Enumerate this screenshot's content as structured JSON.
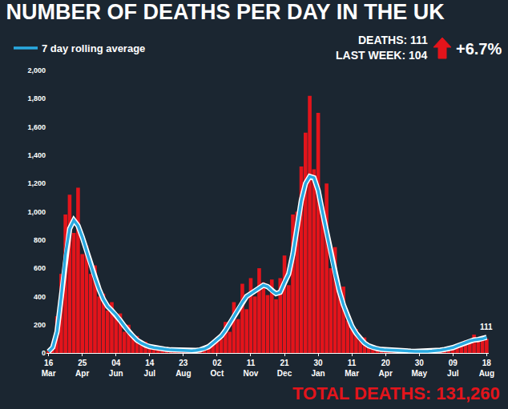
{
  "chart_data": {
    "type": "bar",
    "title": "NUMBER OF DEATHS PER DAY IN THE UK",
    "categories": [
      "16 Mar",
      null,
      null,
      null,
      null,
      null,
      null,
      null,
      "25 Apr",
      null,
      null,
      null,
      null,
      null,
      null,
      null,
      "04 Jun",
      null,
      null,
      null,
      null,
      null,
      null,
      null,
      "14 Jul",
      null,
      null,
      null,
      null,
      null,
      null,
      null,
      "23 Aug",
      null,
      null,
      null,
      null,
      null,
      null,
      null,
      "02 Oct",
      null,
      null,
      null,
      null,
      null,
      null,
      null,
      "11 Nov",
      null,
      null,
      null,
      null,
      null,
      null,
      null,
      "21 Dec",
      null,
      null,
      null,
      null,
      null,
      null,
      null,
      "30 Jan",
      null,
      null,
      null,
      null,
      null,
      null,
      null,
      "11 Mar",
      null,
      null,
      null,
      null,
      null,
      null,
      null,
      "20 Apr",
      null,
      null,
      null,
      null,
      null,
      null,
      null,
      "30 May",
      null,
      null,
      null,
      null,
      null,
      null,
      null,
      "09 Jul",
      null,
      null,
      null,
      null,
      null,
      null,
      null,
      "18 Aug"
    ],
    "series": [
      {
        "type": "bar",
        "color": "#e3141b",
        "values": [
          15,
          60,
          260,
          560,
          980,
          1120,
          850,
          1170,
          700,
          760,
          560,
          620,
          400,
          420,
          300,
          360,
          260,
          280,
          150,
          200,
          110,
          120,
          60,
          80,
          40,
          55,
          25,
          40,
          20,
          30,
          15,
          25,
          10,
          20,
          12,
          25,
          20,
          40,
          60,
          70,
          110,
          100,
          220,
          150,
          360,
          240,
          490,
          310,
          530,
          400,
          600,
          500,
          410,
          520,
          380,
          530,
          690,
          480,
          980,
          1000,
          1320,
          1560,
          1820,
          1300,
          1700,
          1000,
          1200,
          600,
          750,
          450,
          470,
          230,
          200,
          170,
          90,
          110,
          40,
          45,
          25,
          30,
          20,
          25,
          10,
          20,
          8,
          15,
          6,
          15,
          5,
          12,
          15,
          18,
          20,
          25,
          28,
          35,
          40,
          60,
          50,
          90,
          70,
          130,
          90,
          120,
          100
        ]
      },
      {
        "name": "7 day rolling average",
        "type": "line",
        "color": "#29a9e0",
        "values": [
          10,
          40,
          150,
          400,
          700,
          880,
          940,
          900,
          820,
          720,
          620,
          530,
          450,
          380,
          330,
          300,
          270,
          230,
          190,
          150,
          120,
          90,
          70,
          55,
          45,
          38,
          32,
          28,
          25,
          22,
          20,
          18,
          16,
          15,
          15,
          18,
          22,
          30,
          45,
          70,
          90,
          120,
          160,
          210,
          260,
          310,
          360,
          400,
          420,
          440,
          460,
          480,
          470,
          440,
          420,
          430,
          500,
          560,
          700,
          900,
          1080,
          1200,
          1250,
          1240,
          1150,
          1000,
          850,
          700,
          560,
          440,
          340,
          260,
          190,
          140,
          100,
          70,
          50,
          38,
          30,
          25,
          22,
          20,
          18,
          16,
          15,
          14,
          13,
          12,
          12,
          11,
          12,
          14,
          16,
          20,
          25,
          30,
          38,
          50,
          62,
          75,
          85,
          92,
          95,
          100,
          111
        ]
      }
    ],
    "ylim": [
      0,
      2000
    ],
    "yticks": [
      0,
      200,
      400,
      600,
      800,
      {
        "value": 1000,
        "label": "1,000"
      },
      {
        "value": 1200,
        "label": "1,200"
      },
      {
        "value": 1400,
        "label": "1,400"
      },
      {
        "value": 1600,
        "label": "1,600"
      },
      {
        "value": 1800,
        "label": "1,800"
      },
      {
        "value": 2000,
        "label": "2,000"
      }
    ],
    "grid": false,
    "legend": "top-left",
    "annotations": [
      {
        "text": "DEATHS: 111"
      },
      {
        "text": "LAST WEEK: 104"
      },
      {
        "text": "+6.7%"
      },
      {
        "text": "TOTAL DEATHS: 131,260"
      },
      {
        "text": "111",
        "category": "18 Aug",
        "y": 111
      }
    ]
  }
}
